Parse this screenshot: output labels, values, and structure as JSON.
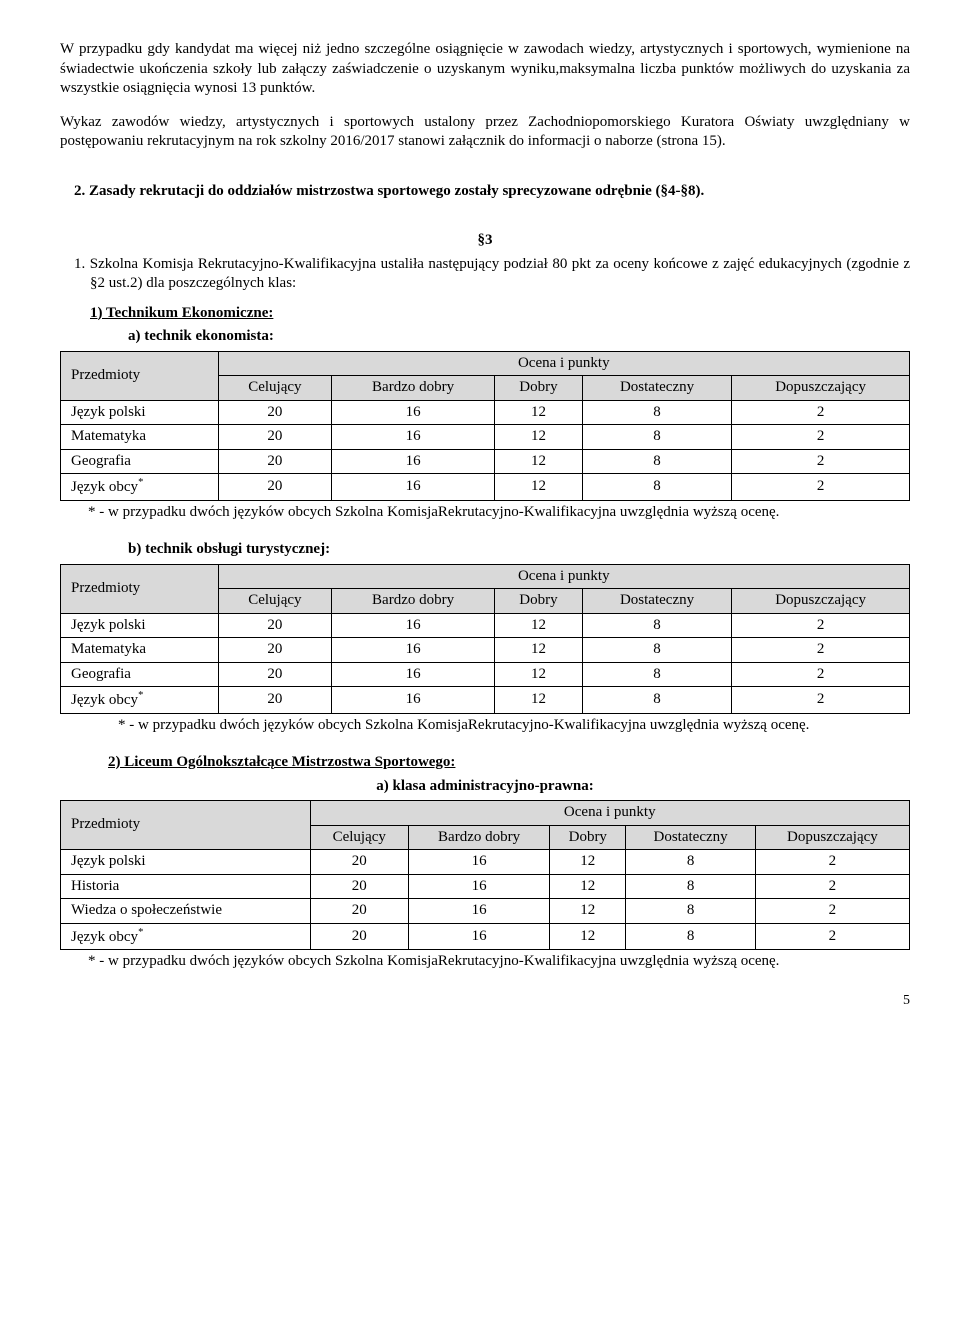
{
  "para1": "W przypadku gdy kandydat ma więcej niż jedno szczególne osiągnięcie w zawodach wiedzy, artystycznych i sportowych, wymienione na świadectwie ukończenia szkoły lub załączy zaświadczenie o uzyskanym wyniku,maksymalna liczba punktów możliwych do uzyskania za wszystkie osiągnięcia wynosi 13 punktów.",
  "para2": "Wykaz zawodów wiedzy, artystycznych i sportowych ustalony przez Zachodniopomorskiego Kuratora Oświaty uwzględniany w postępowaniu rekrutacyjnym na rok szkolny 2016/2017 stanowi załącznik do informacji o naborze (strona 15).",
  "item2": "2.  Zasady rekrutacji do oddziałów mistrzostwa sportowego zostały sprecyzowane odrębnie (§4-§8).",
  "s3_label": "§3",
  "s3_1": "1.  Szkolna Komisja Rekrutacyjno-Kwalifikacyjna ustaliła następujący podział 80 pkt za oceny końcowe z zajęć edukacyjnych (zgodnie z §2 ust.2) dla poszczególnych klas:",
  "tbl": {
    "header_group": "Ocena i punkty",
    "subj_header": "Przedmioty",
    "grades": [
      "Celujący",
      "Bardzo dobry",
      "Dobry",
      "Dostateczny",
      "Dopuszczający"
    ]
  },
  "section1": {
    "title": "1) Technikum Ekonomiczne:",
    "a_label": "a)   technik ekonomista:",
    "rows": [
      {
        "s": "Język polski",
        "v": [
          "20",
          "16",
          "12",
          "8",
          "2"
        ]
      },
      {
        "s": "Matematyka",
        "v": [
          "20",
          "16",
          "12",
          "8",
          "2"
        ]
      },
      {
        "s": "Geografia",
        "v": [
          "20",
          "16",
          "12",
          "8",
          "2"
        ]
      },
      {
        "s": "Język obcy*",
        "v": [
          "20",
          "16",
          "12",
          "8",
          "2"
        ],
        "sup": true
      }
    ],
    "footnote": "* - w przypadku dwóch języków obcych Szkolna KomisjaRekrutacyjno-Kwalifikacyjna uwzględnia wyższą ocenę.",
    "b_label": "b)   technik obsługi turystycznej:",
    "rows_b": [
      {
        "s": "Język polski",
        "v": [
          "20",
          "16",
          "12",
          "8",
          "2"
        ]
      },
      {
        "s": "Matematyka",
        "v": [
          "20",
          "16",
          "12",
          "8",
          "2"
        ]
      },
      {
        "s": "Geografia",
        "v": [
          "20",
          "16",
          "12",
          "8",
          "2"
        ]
      },
      {
        "s": "Język obcy*",
        "v": [
          "20",
          "16",
          "12",
          "8",
          "2"
        ],
        "sup": true
      }
    ],
    "footnote_b": "* - w przypadku dwóch języków obcych Szkolna KomisjaRekrutacyjno-Kwalifikacyjna uwzględnia wyższą ocenę."
  },
  "section2": {
    "title": "2)   Liceum Ogólnokształcące Mistrzostwa Sportowego:",
    "a_label": "a)   klasa administracyjno-prawna:",
    "rows": [
      {
        "s": "Język polski",
        "v": [
          "20",
          "16",
          "12",
          "8",
          "2"
        ]
      },
      {
        "s": "Historia",
        "v": [
          "20",
          "16",
          "12",
          "8",
          "2"
        ]
      },
      {
        "s": "Wiedza o społeczeństwie",
        "v": [
          "20",
          "16",
          "12",
          "8",
          "2"
        ]
      },
      {
        "s": "Język obcy*",
        "v": [
          "20",
          "16",
          "12",
          "8",
          "2"
        ],
        "sup": true
      }
    ],
    "footnote": "* - w przypadku dwóch języków obcych Szkolna KomisjaRekrutacyjno-Kwalifikacyjna uwzględnia wyższą ocenę."
  },
  "page_number": "5"
}
